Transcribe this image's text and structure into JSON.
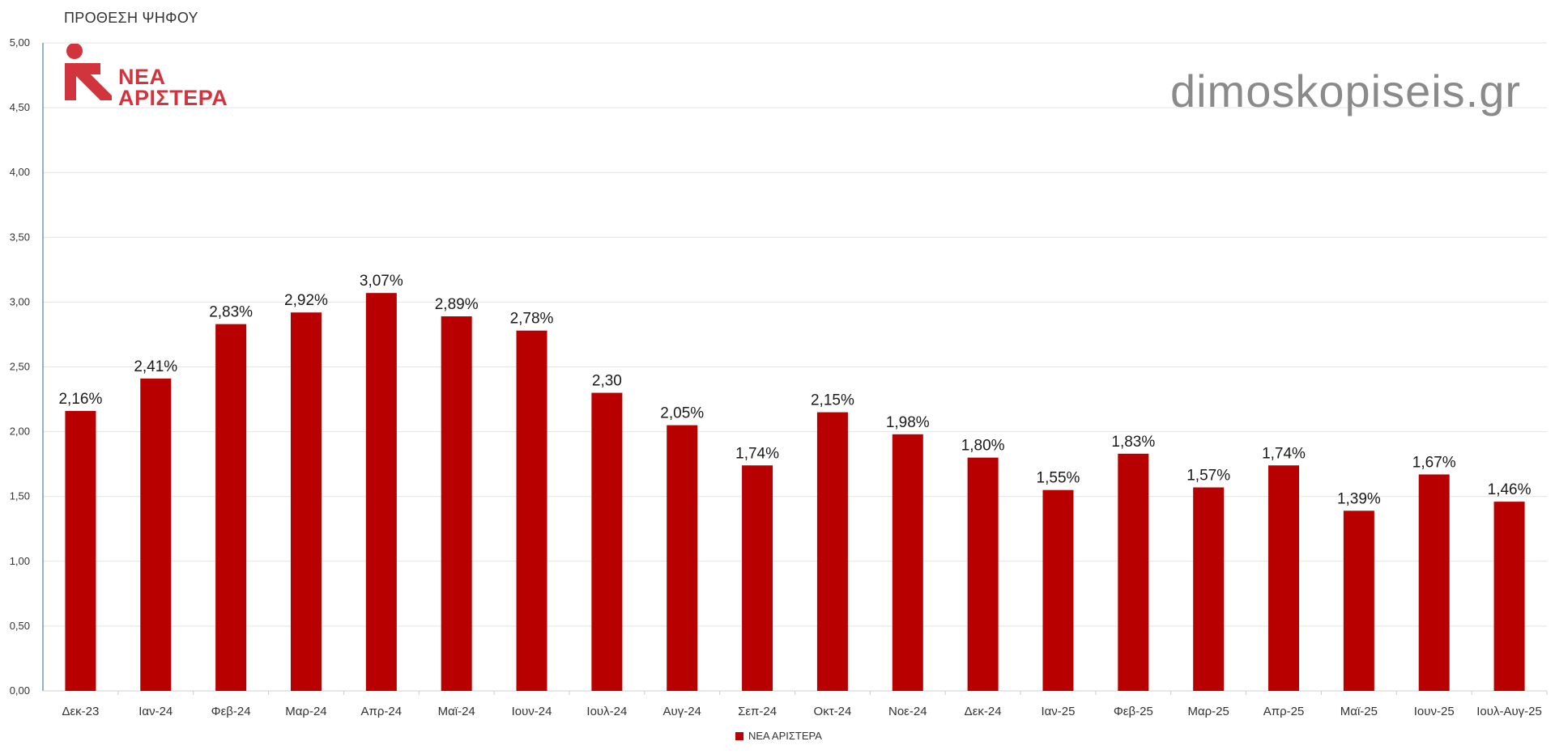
{
  "title": "ΠΡΟΘΕΣΗ ΨΗΦΟΥ",
  "logo": {
    "line1": "ΝΕΑ",
    "line2": "ΑΡΙΣΤΕΡΑ",
    "color": "#d1343d",
    "icon": "nea-aristera-logo-icon"
  },
  "watermark": "dimoskopiseis.gr",
  "legend": {
    "label": "ΝΕΑ ΑΡΙΣΤΕΡΑ",
    "color": "#b80000"
  },
  "chart_data": {
    "type": "bar",
    "title": "ΠΡΟΘΕΣΗ ΨΗΦΟΥ",
    "xlabel": "",
    "ylabel": "",
    "ylim": [
      0,
      5
    ],
    "grid": true,
    "legend_position": "bottom",
    "categories": [
      "Δεκ-23",
      "Ιαν-24",
      "Φεβ-24",
      "Μαρ-24",
      "Απρ-24",
      "Μαϊ-24",
      "Ιουν-24",
      "Ιουλ-24",
      "Αυγ-24",
      "Σεπ-24",
      "Οκτ-24",
      "Νοε-24",
      "Δεκ-24",
      "Ιαν-25",
      "Φεβ-25",
      "Μαρ-25",
      "Απρ-25",
      "Μαϊ-25",
      "Ιουν-25",
      "Ιουλ-Αυγ-25"
    ],
    "series": [
      {
        "name": "ΝΕΑ ΑΡΙΣΤΕΡΑ",
        "color": "#b80000",
        "values": [
          2.16,
          2.41,
          2.83,
          2.92,
          3.07,
          2.89,
          2.78,
          2.3,
          2.05,
          1.74,
          2.15,
          1.98,
          1.8,
          1.55,
          1.83,
          1.57,
          1.74,
          1.39,
          1.67,
          1.46
        ],
        "data_labels": [
          "2,16%",
          "2,41%",
          "2,83%",
          "2,92%",
          "3,07%",
          "2,89%",
          "2,78%",
          "2,30",
          "2,05%",
          "1,74%",
          "2,15%",
          "1,98%",
          "1,80%",
          "1,55%",
          "1,83%",
          "1,57%",
          "1,74%",
          "1,39%",
          "1,67%",
          "1,46%"
        ]
      }
    ],
    "y_ticks": [
      {
        "value": 0,
        "label": "0,00"
      },
      {
        "value": 0.5,
        "label": "0,50"
      },
      {
        "value": 1,
        "label": "1,00"
      },
      {
        "value": 1.5,
        "label": "1,50"
      },
      {
        "value": 2,
        "label": "2,00"
      },
      {
        "value": 2.5,
        "label": "2,50"
      },
      {
        "value": 3,
        "label": "3,00"
      },
      {
        "value": 3.5,
        "label": "3,50"
      },
      {
        "value": 4,
        "label": "4,00"
      },
      {
        "value": 4.5,
        "label": "4,50"
      },
      {
        "value": 5,
        "label": "5,00"
      }
    ]
  }
}
